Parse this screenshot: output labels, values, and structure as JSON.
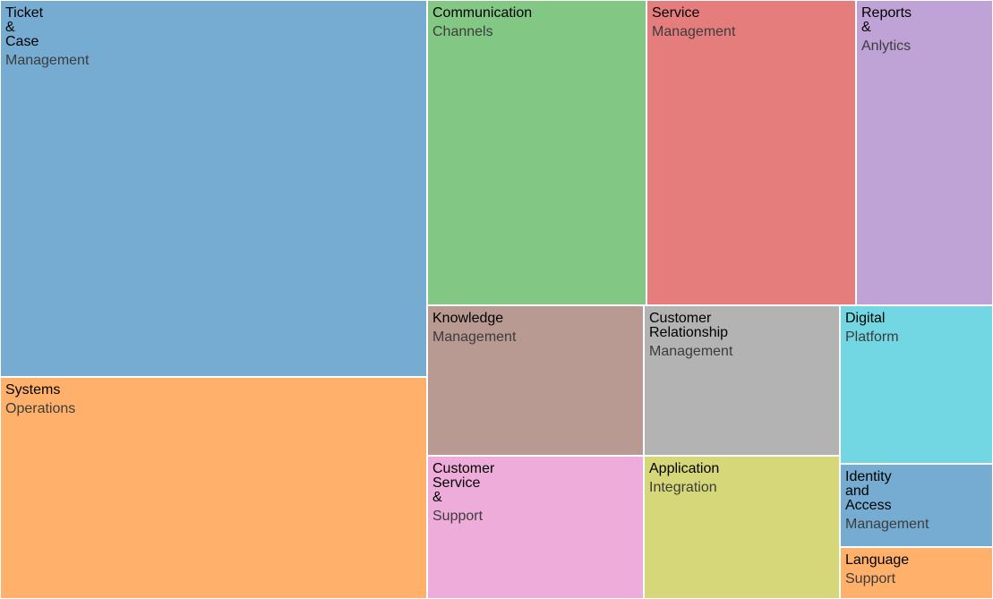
{
  "chart_data": {
    "type": "treemap",
    "title": "",
    "items": [
      {
        "label": "Ticket & Case",
        "sublabel": "Management",
        "value": 200,
        "color": "#76acd1"
      },
      {
        "label": "Systems",
        "sublabel": "Operations",
        "value": 115,
        "color": "#ffb16c"
      },
      {
        "label": "Communication",
        "sublabel": "Channels",
        "value": 83,
        "color": "#82c784"
      },
      {
        "label": "Service",
        "sublabel": "Management",
        "value": 80,
        "color": "#e57d7d"
      },
      {
        "label": "Reports & Anlytics",
        "sublabel": "",
        "value": 56,
        "color": "#c0a3d6"
      },
      {
        "label": "Knowledge",
        "sublabel": "Management",
        "value": 40,
        "color": "#b99a92"
      },
      {
        "label": "Customer Relationship",
        "sublabel": "Management",
        "value": 36,
        "color": "#b3b3b3"
      },
      {
        "label": "Customer Service &",
        "sublabel": "Support",
        "value": 37,
        "color": "#eeacdb"
      },
      {
        "label": "Application",
        "sublabel": "Integration",
        "value": 32,
        "color": "#d6d779"
      },
      {
        "label": "Digital",
        "sublabel": "Platform",
        "value": 20,
        "color": "#72d7e3"
      },
      {
        "label": "Identity and Access",
        "sublabel": "Management",
        "value": 11,
        "color": "#76acd1"
      },
      {
        "label": "Language",
        "sublabel": "Support",
        "value": 7,
        "color": "#ffb16c"
      }
    ]
  }
}
